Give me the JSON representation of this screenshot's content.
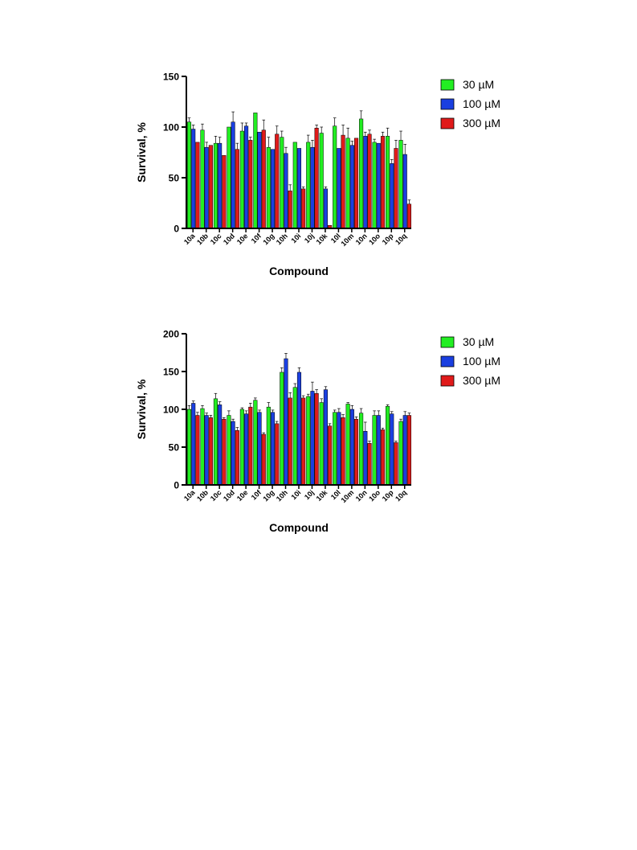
{
  "colors": {
    "s30": "#22ee22",
    "s100": "#1a3fe0",
    "s300": "#e01a1a"
  },
  "chart_data": [
    {
      "type": "bar",
      "xlabel": "Compound",
      "ylabel": "Survival, %",
      "ylim": [
        0,
        150
      ],
      "yticks": [
        0,
        50,
        100,
        150
      ],
      "legend": "top-right",
      "categories": [
        "10a",
        "10b",
        "10c",
        "10d",
        "10e",
        "10f",
        "10g",
        "10h",
        "10i",
        "10j",
        "10k",
        "10l",
        "10m",
        "10n",
        "10o",
        "10p",
        "10q"
      ],
      "series": [
        {
          "name": "30 µM",
          "values": [
            105,
            97,
            84,
            100,
            96,
            114,
            80,
            90,
            85,
            85,
            94,
            101,
            89,
            108,
            85,
            91,
            87
          ],
          "errors": [
            4,
            6,
            7,
            0,
            8,
            0,
            10,
            6,
            0,
            7,
            6,
            8,
            10,
            8,
            3,
            8,
            9
          ]
        },
        {
          "name": "100 µM",
          "values": [
            98,
            80,
            84,
            105,
            101,
            95,
            78,
            74,
            79,
            80,
            39,
            79,
            82,
            91,
            84,
            64,
            73
          ],
          "errors": [
            4,
            5,
            6,
            10,
            3,
            0,
            0,
            6,
            0,
            7,
            2,
            0,
            4,
            4,
            0,
            4,
            10
          ]
        },
        {
          "name": "300 µM",
          "values": [
            85,
            82,
            72,
            78,
            87,
            97,
            93,
            37,
            39,
            99,
            3,
            92,
            89,
            93,
            91,
            79,
            24
          ],
          "errors": [
            0,
            0,
            0,
            6,
            3,
            10,
            8,
            6,
            2,
            3,
            0,
            10,
            0,
            4,
            4,
            8,
            4
          ]
        }
      ]
    },
    {
      "type": "bar",
      "xlabel": "Compound",
      "ylabel": "Survival, %",
      "ylim": [
        0,
        200
      ],
      "yticks": [
        0,
        50,
        100,
        150,
        200
      ],
      "legend": "top-right",
      "categories": [
        "10a",
        "10b",
        "10c",
        "10d",
        "10e",
        "10f",
        "10g",
        "10h",
        "10i",
        "10j",
        "10k",
        "10l",
        "10m",
        "10n",
        "10o",
        "10p",
        "10q"
      ],
      "series": [
        {
          "name": "30 µM",
          "values": [
            100,
            101,
            114,
            92,
            100,
            112,
            103,
            149,
            129,
            117,
            109,
            96,
            107,
            95,
            92,
            104,
            84
          ],
          "errors": [
            5,
            4,
            7,
            6,
            2,
            3,
            6,
            6,
            5,
            3,
            5,
            3,
            2,
            6,
            6,
            2,
            3
          ]
        },
        {
          "name": "100 µM",
          "values": [
            108,
            92,
            106,
            84,
            94,
            96,
            96,
            167,
            149,
            124,
            126,
            96,
            100,
            71,
            92,
            94,
            92
          ],
          "errors": [
            3,
            3,
            4,
            3,
            4,
            3,
            3,
            7,
            6,
            12,
            4,
            5,
            5,
            12,
            6,
            3,
            5
          ]
        },
        {
          "name": "300 µM",
          "values": [
            92,
            89,
            87,
            72,
            103,
            67,
            81,
            115,
            115,
            121,
            78,
            89,
            87,
            55,
            73,
            56,
            92
          ],
          "errors": [
            4,
            3,
            2,
            4,
            5,
            2,
            3,
            7,
            3,
            5,
            3,
            4,
            3,
            3,
            2,
            2,
            3
          ]
        }
      ]
    }
  ]
}
